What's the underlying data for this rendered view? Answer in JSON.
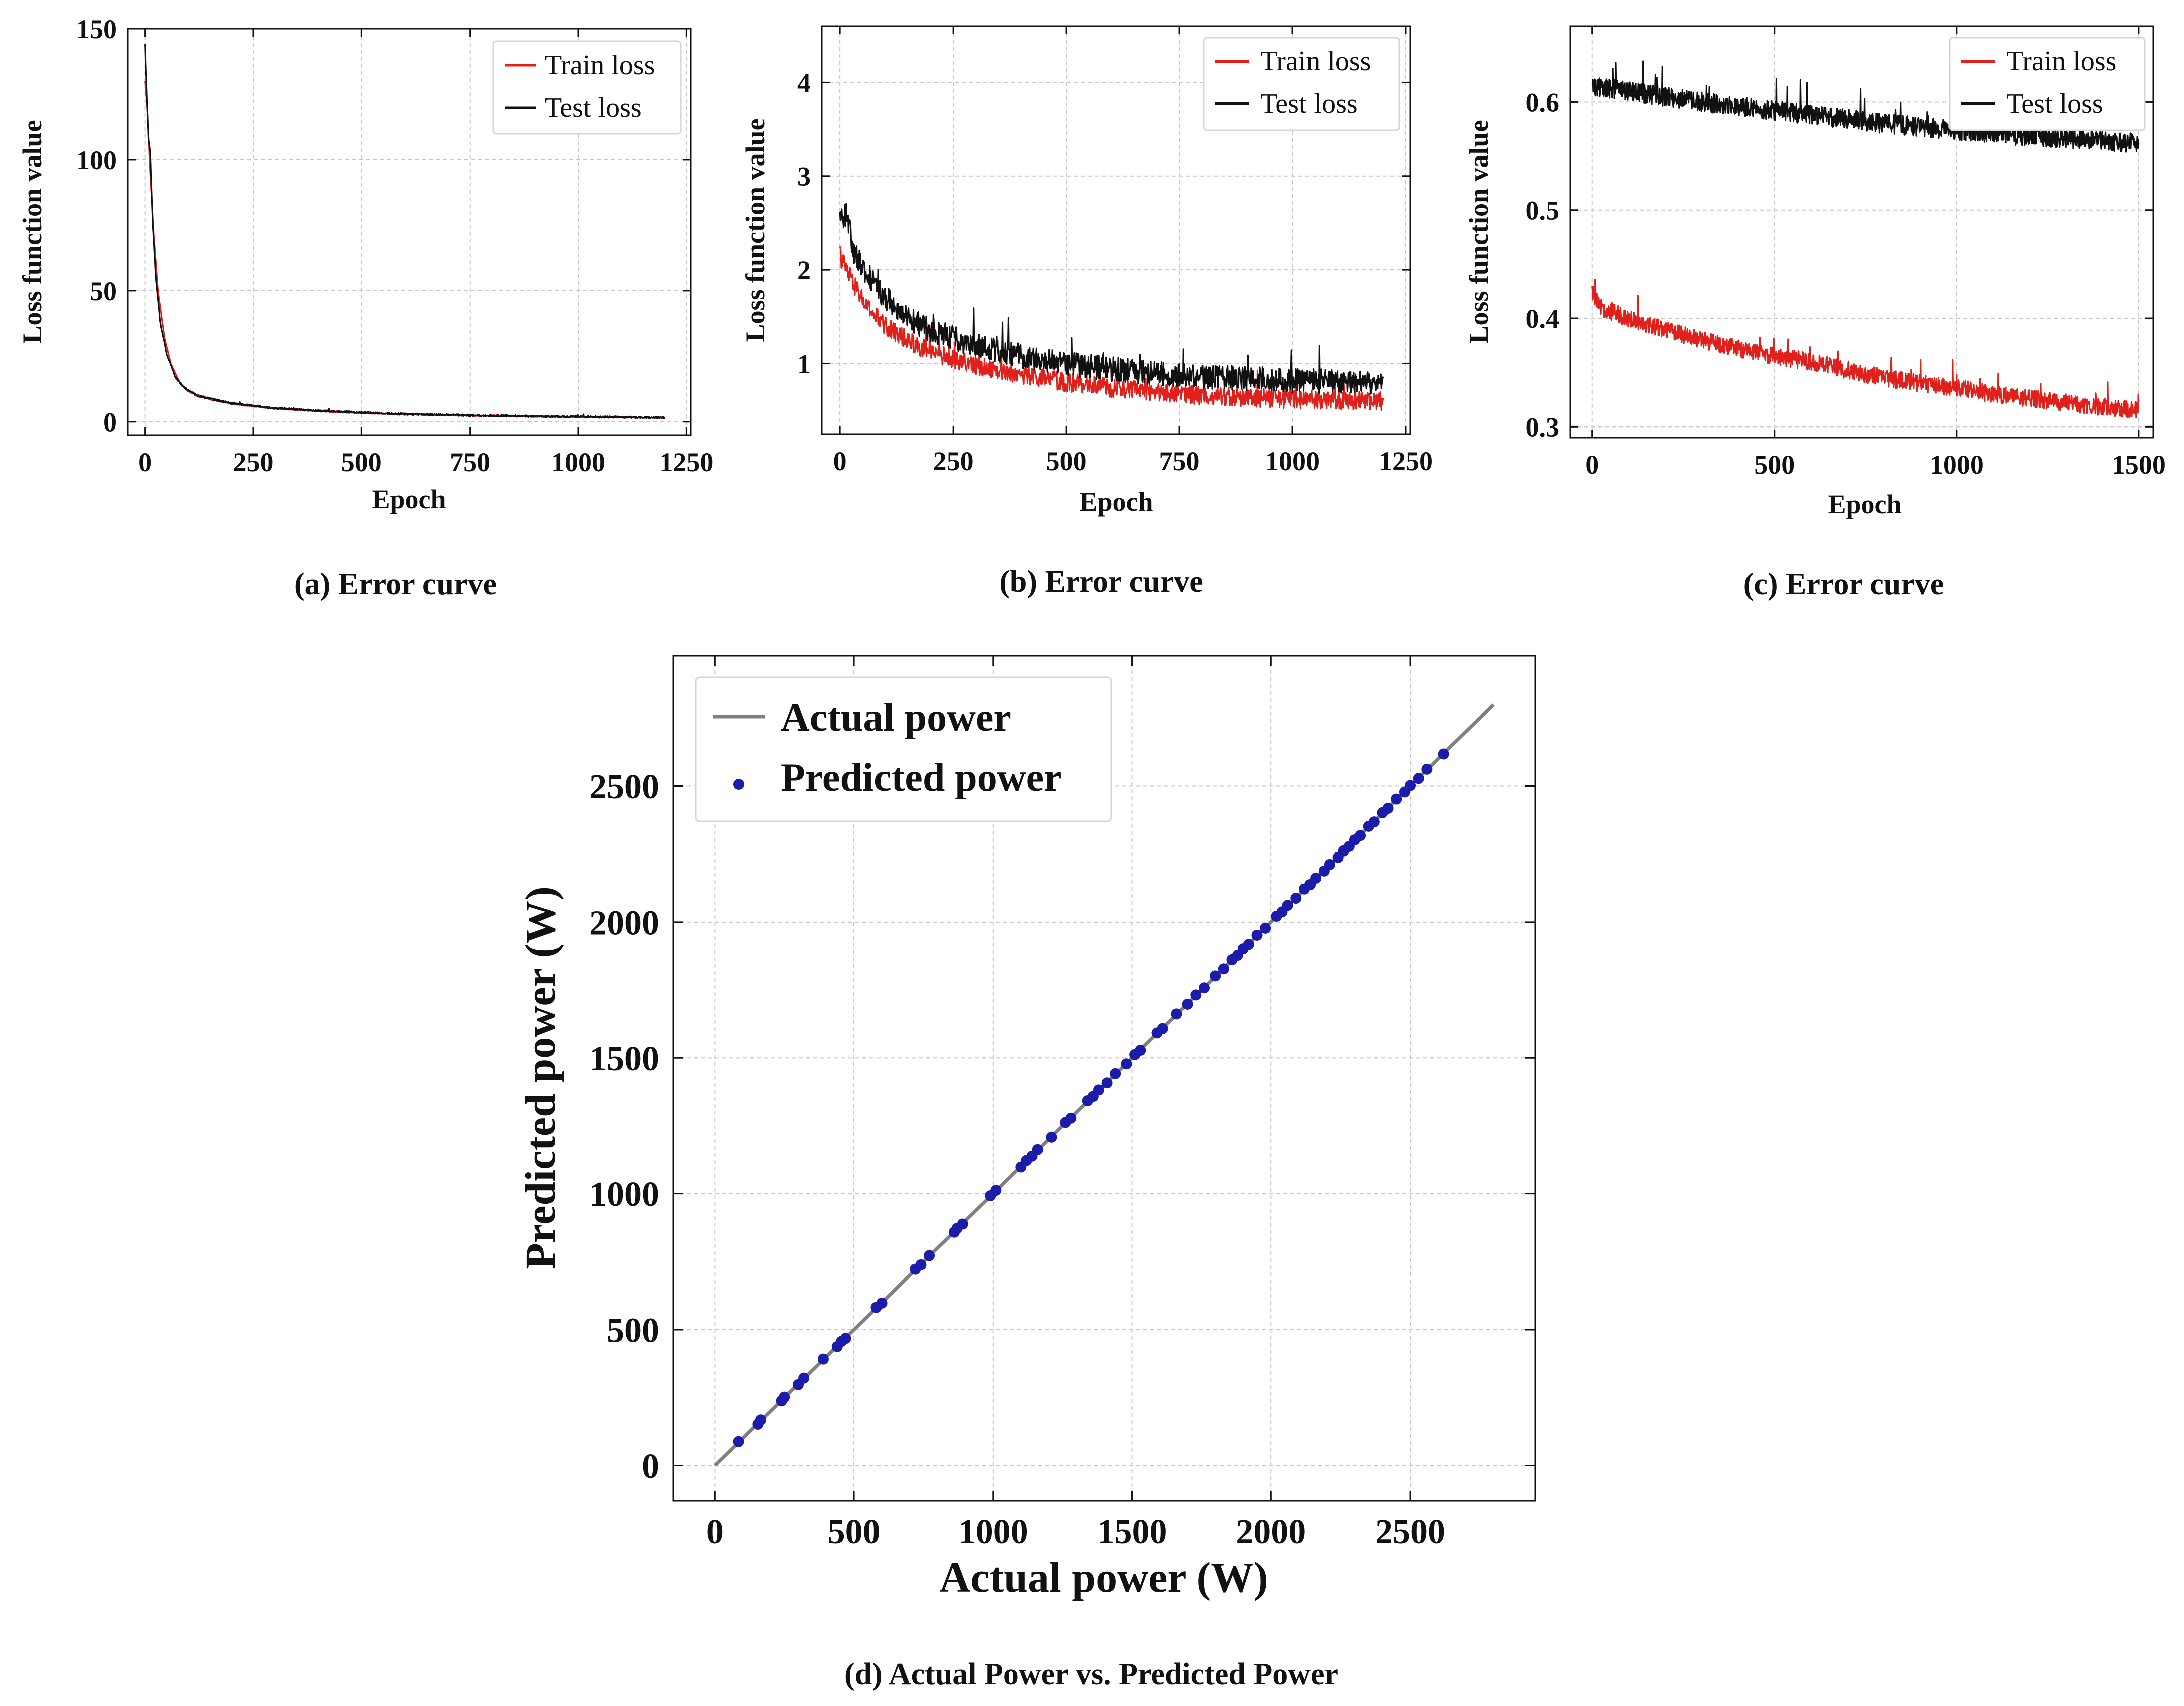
{
  "chart_data": [
    {
      "id": "a",
      "type": "line",
      "caption": "(a) Error curve",
      "xlabel": "Epoch",
      "ylabel": "Loss function value",
      "xlim": [
        -40,
        1260
      ],
      "ylim": [
        -5,
        150
      ],
      "xticks": [
        0,
        250,
        500,
        750,
        1000,
        1250
      ],
      "yticks": [
        0,
        50,
        100,
        150
      ],
      "grid": true,
      "legend_position": "top-right",
      "series": [
        {
          "name": "Train loss",
          "color": "#e0201b",
          "epochs": 1200,
          "curve_points": [
            [
              0,
              130
            ],
            [
              5,
              120
            ],
            [
              12,
              95
            ],
            [
              20,
              72
            ],
            [
              30,
              50
            ],
            [
              45,
              32
            ],
            [
              60,
              22
            ],
            [
              80,
              15
            ],
            [
              100,
              11.5
            ],
            [
              150,
              8.5
            ],
            [
              200,
              6.8
            ],
            [
              300,
              5
            ],
            [
              400,
              4
            ],
            [
              500,
              3.3
            ],
            [
              600,
              2.8
            ],
            [
              800,
              2.2
            ],
            [
              1000,
              1.8
            ],
            [
              1200,
              1.5
            ]
          ],
          "noise": 0.15
        },
        {
          "name": "Test loss",
          "color": "#111111",
          "epochs": 1200,
          "curve_points": [
            [
              0,
              143
            ],
            [
              4,
              125
            ],
            [
              8,
              108
            ],
            [
              12,
              103
            ],
            [
              18,
              75
            ],
            [
              25,
              55
            ],
            [
              35,
              38
            ],
            [
              50,
              26
            ],
            [
              70,
              17
            ],
            [
              90,
              13
            ],
            [
              120,
              10
            ],
            [
              150,
              8.8
            ],
            [
              200,
              7
            ],
            [
              300,
              5.2
            ],
            [
              400,
              4.2
            ],
            [
              500,
              3.5
            ],
            [
              600,
              2.9
            ],
            [
              800,
              2.3
            ],
            [
              1000,
              1.9
            ],
            [
              1200,
              1.6
            ]
          ],
          "noise": 0.35
        }
      ]
    },
    {
      "id": "b",
      "type": "line",
      "caption": "(b) Error curve",
      "xlabel": "Epoch",
      "ylabel": "Loss function value",
      "xlim": [
        -40,
        1260
      ],
      "ylim": [
        0.25,
        4.6
      ],
      "xticks": [
        0,
        250,
        500,
        750,
        1000,
        1250
      ],
      "yticks": [
        1,
        2,
        3,
        4
      ],
      "grid": true,
      "legend_position": "top-right",
      "series": [
        {
          "name": "Train loss",
          "color": "#e0201b",
          "epochs": 1200,
          "curve_points": [
            [
              0,
              2.15
            ],
            [
              30,
              1.85
            ],
            [
              60,
              1.6
            ],
            [
              100,
              1.4
            ],
            [
              150,
              1.25
            ],
            [
              200,
              1.12
            ],
            [
              300,
              0.98
            ],
            [
              400,
              0.88
            ],
            [
              500,
              0.8
            ],
            [
              600,
              0.74
            ],
            [
              700,
              0.7
            ],
            [
              800,
              0.66
            ],
            [
              900,
              0.64
            ],
            [
              1000,
              0.62
            ],
            [
              1100,
              0.61
            ],
            [
              1200,
              0.6
            ]
          ],
          "noise": 0.1
        },
        {
          "name": "Test loss",
          "color": "#111111",
          "epochs": 1200,
          "curve_points": [
            [
              0,
              2.55
            ],
            [
              15,
              2.6
            ],
            [
              30,
              2.2
            ],
            [
              60,
              1.95
            ],
            [
              100,
              1.7
            ],
            [
              150,
              1.48
            ],
            [
              200,
              1.35
            ],
            [
              300,
              1.2
            ],
            [
              400,
              1.08
            ],
            [
              500,
              1.0
            ],
            [
              600,
              0.94
            ],
            [
              700,
              0.9
            ],
            [
              800,
              0.86
            ],
            [
              900,
              0.84
            ],
            [
              1000,
              0.82
            ],
            [
              1100,
              0.81
            ],
            [
              1200,
              0.8
            ]
          ],
          "noise": 0.13
        }
      ]
    },
    {
      "id": "c",
      "type": "line",
      "caption": "(c) Error curve",
      "xlabel": "Epoch",
      "ylabel": "Loss function value",
      "xlim": [
        -60,
        1540
      ],
      "ylim": [
        0.29,
        0.67
      ],
      "xticks": [
        0,
        500,
        1000,
        1500
      ],
      "yticks": [
        0.3,
        0.4,
        0.5,
        0.6
      ],
      "grid": true,
      "legend_position": "top-right",
      "series": [
        {
          "name": "Train loss",
          "color": "#e0201b",
          "epochs": 1500,
          "curve_points": [
            [
              0,
              0.425
            ],
            [
              20,
              0.41
            ],
            [
              100,
              0.4
            ],
            [
              200,
              0.39
            ],
            [
              300,
              0.38
            ],
            [
              400,
              0.372
            ],
            [
              500,
              0.365
            ],
            [
              600,
              0.36
            ],
            [
              700,
              0.352
            ],
            [
              800,
              0.345
            ],
            [
              900,
              0.34
            ],
            [
              1000,
              0.336
            ],
            [
              1100,
              0.33
            ],
            [
              1200,
              0.326
            ],
            [
              1300,
              0.322
            ],
            [
              1400,
              0.318
            ],
            [
              1500,
              0.315
            ]
          ],
          "noise": 0.008
        },
        {
          "name": "Test loss",
          "color": "#111111",
          "epochs": 1500,
          "curve_points": [
            [
              0,
              0.615
            ],
            [
              100,
              0.61
            ],
            [
              200,
              0.605
            ],
            [
              300,
              0.6
            ],
            [
              400,
              0.596
            ],
            [
              500,
              0.592
            ],
            [
              600,
              0.588
            ],
            [
              700,
              0.584
            ],
            [
              800,
              0.58
            ],
            [
              900,
              0.577
            ],
            [
              1000,
              0.574
            ],
            [
              1100,
              0.571
            ],
            [
              1200,
              0.568
            ],
            [
              1300,
              0.566
            ],
            [
              1400,
              0.564
            ],
            [
              1500,
              0.562
            ]
          ],
          "noise": 0.009
        }
      ]
    },
    {
      "id": "d",
      "type": "scatter",
      "caption": "(d) Actual Power vs. Predicted Power",
      "xlabel": "Actual power (W)",
      "ylabel": "Predicted power (W)",
      "xlim": [
        -150,
        2950
      ],
      "ylim": [
        -130,
        2980
      ],
      "xticks": [
        0,
        500,
        1000,
        1500,
        2000,
        2500
      ],
      "yticks": [
        0,
        500,
        1000,
        1500,
        2000,
        2500
      ],
      "grid": true,
      "legend_position": "top-left",
      "line": {
        "name": "Actual power",
        "color": "#808080",
        "x": [
          0,
          2800
        ],
        "y": [
          0,
          2800
        ]
      },
      "scatter": {
        "name": "Predicted power",
        "color": "#1c1caa",
        "x": [
          85,
          155,
          165,
          240,
          250,
          300,
          320,
          390,
          440,
          455,
          470,
          580,
          600,
          720,
          740,
          770,
          860,
          870,
          890,
          990,
          1010,
          1100,
          1120,
          1140,
          1160,
          1210,
          1260,
          1280,
          1340,
          1360,
          1380,
          1410,
          1440,
          1480,
          1510,
          1530,
          1590,
          1610,
          1660,
          1700,
          1730,
          1760,
          1800,
          1830,
          1860,
          1880,
          1900,
          1920,
          1950,
          1980,
          2020,
          2040,
          2060,
          2090,
          2120,
          2140,
          2160,
          2190,
          2210,
          2240,
          2260,
          2280,
          2300,
          2320,
          2350,
          2370,
          2400,
          2420,
          2450,
          2480,
          2500,
          2530,
          2560,
          2620
        ],
        "y": [
          88,
          152,
          168,
          238,
          252,
          298,
          322,
          392,
          438,
          457,
          468,
          582,
          598,
          722,
          738,
          772,
          858,
          872,
          888,
          992,
          1012,
          1098,
          1122,
          1138,
          1162,
          1208,
          1262,
          1278,
          1342,
          1358,
          1382,
          1408,
          1442,
          1478,
          1512,
          1528,
          1592,
          1608,
          1662,
          1698,
          1732,
          1758,
          1802,
          1828,
          1862,
          1878,
          1902,
          1918,
          1952,
          1978,
          2022,
          2038,
          2062,
          2088,
          2122,
          2138,
          2162,
          2188,
          2212,
          2238,
          2262,
          2278,
          2302,
          2318,
          2352,
          2368,
          2402,
          2418,
          2452,
          2478,
          2502,
          2528,
          2562,
          2618
        ]
      }
    }
  ]
}
